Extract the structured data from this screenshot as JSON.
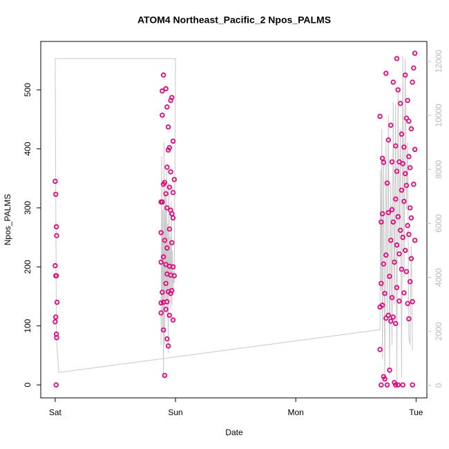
{
  "chart_data": {
    "type": "scatter",
    "title": "ATOM4 Northeast_Pacific_2 Npos_PALMS",
    "xlabel": "Date",
    "ylabel": "Npos_PALMS",
    "xlim": [
      -0.12,
      3.09
    ],
    "ylim": [
      -22,
      582
    ],
    "y2lim": [
      -460,
      12737
    ],
    "xticks": [
      {
        "value": 0,
        "label": "Sat"
      },
      {
        "value": 1,
        "label": "Sun"
      },
      {
        "value": 2,
        "label": "Mon"
      },
      {
        "value": 3,
        "label": "Tue"
      }
    ],
    "yticks": [
      0,
      100,
      200,
      300,
      400,
      500
    ],
    "y2ticks": [
      0,
      2000,
      4000,
      6000,
      8000,
      10000,
      12000
    ],
    "series": [
      {
        "color": "#e6007e",
        "x": [
          0.0,
          0.005,
          0.01,
          0.012,
          0.0,
          0.005,
          0.01,
          0.015,
          0.005,
          0.0,
          0.01,
          0.012,
          0.008,
          0.9,
          0.89,
          0.92,
          0.97,
          0.96,
          0.93,
          0.89,
          0.94,
          0.98,
          0.95,
          0.94,
          0.93,
          0.96,
          0.99,
          0.91,
          0.9,
          0.95,
          0.98,
          0.92,
          0.88,
          0.89,
          0.93,
          0.96,
          0.97,
          0.98,
          0.95,
          0.88,
          0.91,
          0.97,
          0.93,
          0.9,
          0.88,
          0.92,
          0.95,
          0.98,
          0.93,
          0.96,
          0.99,
          0.92,
          0.94,
          0.97,
          0.96,
          0.89,
          0.93,
          0.88,
          0.9,
          0.92,
          0.88,
          0.95,
          0.98,
          0.9,
          0.93,
          0.94,
          0.91,
          2.99,
          2.84,
          2.75,
          2.98,
          2.91,
          2.81,
          2.85,
          2.93,
          2.87,
          2.97,
          2.92,
          2.94,
          2.79,
          2.96,
          2.88,
          2.7,
          2.77,
          2.83,
          2.9,
          2.99,
          2.94,
          2.72,
          2.8,
          2.73,
          2.86,
          2.89,
          2.95,
          2.84,
          2.91,
          2.76,
          2.92,
          2.98,
          2.88,
          2.83,
          2.9,
          2.95,
          2.8,
          2.77,
          2.72,
          2.85,
          2.96,
          2.93,
          2.81,
          2.71,
          2.87,
          2.94,
          2.89,
          2.99,
          2.79,
          2.84,
          2.91,
          2.86,
          2.75,
          2.96,
          2.82,
          2.73,
          2.88,
          2.92,
          2.78,
          2.95,
          2.71,
          2.84,
          2.9,
          2.74,
          2.8,
          2.86,
          2.97,
          2.93,
          2.72,
          2.7,
          2.77,
          2.81,
          2.94,
          2.75,
          2.79,
          2.83,
          2.7,
          2.78,
          2.73,
          2.74,
          2.71,
          2.76,
          2.82,
          2.85,
          2.89,
          2.97,
          2.83
        ],
        "values": [
          345,
          323,
          268,
          253,
          202,
          185,
          185,
          140,
          115,
          107,
          86,
          80,
          0,
          525,
          498,
          502,
          487,
          482,
          471,
          457,
          437,
          413,
          402,
          398,
          369,
          361,
          348,
          343,
          340,
          335,
          326,
          324,
          310,
          310,
          300,
          296,
          290,
          283,
          264,
          258,
          245,
          241,
          232,
          217,
          208,
          204,
          201,
          200,
          188,
          186,
          185,
          172,
          158,
          160,
          155,
          157,
          141,
          139,
          140,
          128,
          122,
          118,
          110,
          93,
          78,
          66,
          16,
          562,
          553,
          528,
          537,
          525,
          513,
          500,
          482,
          477,
          513,
          452,
          447,
          440,
          434,
          425,
          455,
          415,
          405,
          403,
          399,
          387,
          384,
          378,
          377,
          378,
          375,
          368,
          362,
          358,
          342,
          338,
          340,
          330,
          315,
          311,
          300,
          297,
          292,
          290,
          285,
          283,
          270,
          276,
          276,
          262,
          255,
          250,
          245,
          245,
          237,
          228,
          222,
          220,
          214,
          208,
          205,
          196,
          192,
          184,
          175,
          172,
          165,
          156,
          155,
          148,
          142,
          141,
          138,
          135,
          132,
          118,
          115,
          112,
          113,
          108,
          104,
          60,
          25,
          14,
          10,
          0,
          0,
          4,
          0,
          0,
          0,
          0
        ]
      },
      {
        "color": "#c8c8c8",
        "axis": "y2",
        "x": [
          0.88,
          0.885,
          0.89,
          0.895,
          0.9,
          0.905,
          0.91,
          0.915,
          0.92,
          0.925,
          0.93,
          0.935,
          0.94,
          0.945,
          0.95,
          0.955,
          0.96,
          0.965,
          0.97,
          0.975,
          0.98,
          0.985,
          0.99,
          1.0,
          0.0,
          0.01,
          0.03,
          2.69,
          2.7,
          2.705,
          2.71,
          2.715,
          2.72,
          2.73,
          2.74,
          2.75,
          2.76,
          2.77,
          2.78,
          2.79,
          2.8,
          2.81,
          2.82,
          2.83,
          2.84,
          2.85,
          2.86,
          2.87,
          2.88,
          2.89,
          2.9,
          2.91,
          2.92,
          2.93,
          2.94,
          2.95,
          2.96,
          2.97
        ],
        "values": [
          1500,
          8500,
          2000,
          6500,
          300,
          9000,
          1500,
          7000,
          3000,
          8000,
          2500,
          6000,
          1200,
          7500,
          3500,
          5500,
          2800,
          6800,
          3000,
          5000,
          3500,
          4200,
          3800,
          12100,
          12100,
          1700,
          480,
          2060,
          2060,
          8000,
          3500,
          9500,
          1000,
          8500,
          200,
          9000,
          2500,
          10000,
          400,
          7500,
          1500,
          10500,
          3000,
          10400,
          200,
          11000,
          5000,
          9500,
          300,
          12200,
          4000,
          12100,
          6500,
          9000,
          1800,
          1500,
          5200,
          1300
        ]
      }
    ]
  }
}
